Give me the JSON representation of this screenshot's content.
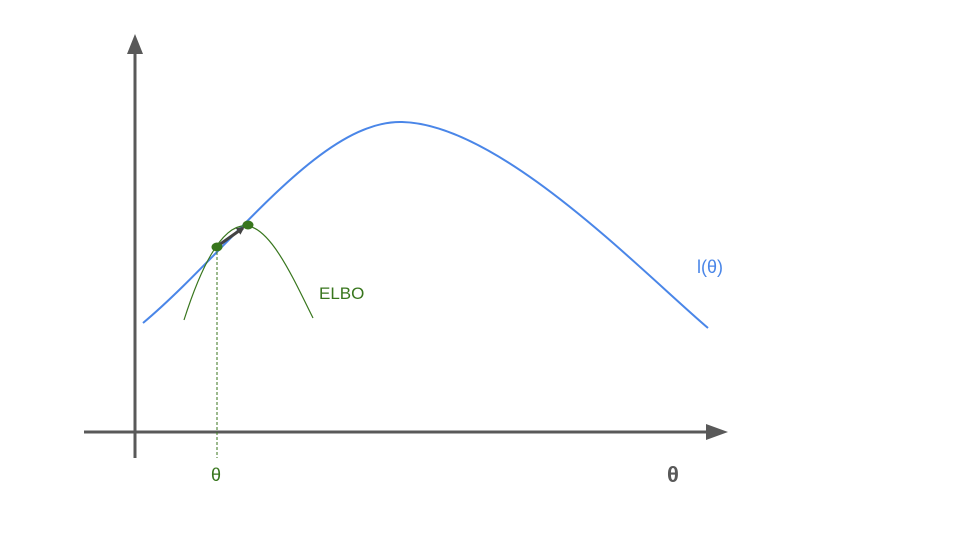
{
  "labels": {
    "curve": "l(θ)",
    "bound": "ELBO",
    "current_theta": "θ",
    "axis_theta": "θ"
  },
  "colors": {
    "axis": "#595959",
    "likelihood": "#4a86e8",
    "elbo": "#38761d",
    "step_arrow": "#434343",
    "background": "#ffffff"
  }
}
